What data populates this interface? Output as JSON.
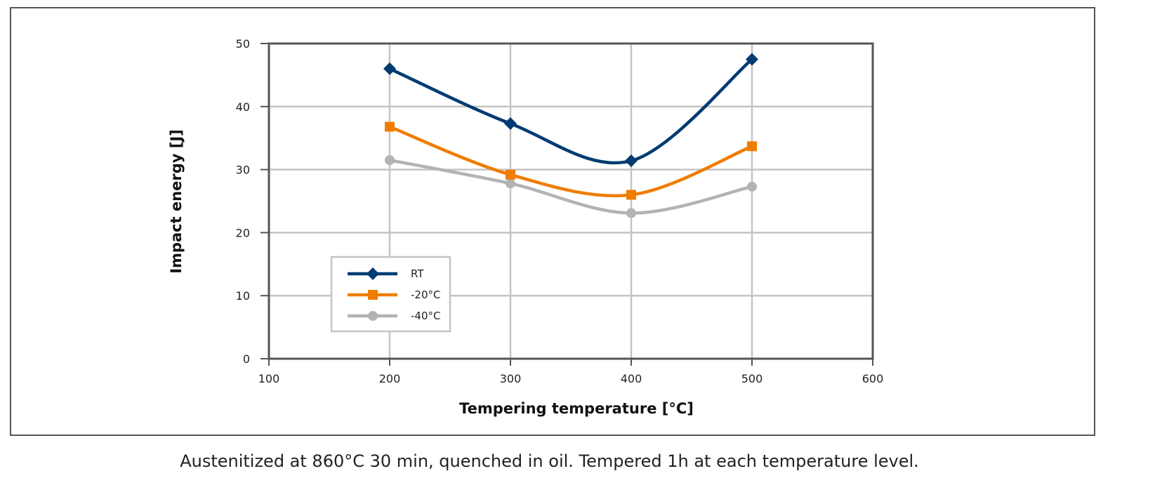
{
  "caption": "Austenitized at 860°C 30 min, quenched in oil. Tempered 1h at each temperature level.",
  "chart_data": {
    "type": "line",
    "title": "",
    "xlabel": "Tempering temperature [°C]",
    "ylabel": "Impact energy [J]",
    "xlim": [
      100,
      600
    ],
    "ylim": [
      0,
      50
    ],
    "x_ticks": [
      100,
      200,
      300,
      400,
      500,
      600
    ],
    "y_ticks": [
      0,
      10,
      20,
      30,
      40,
      50
    ],
    "grid": true,
    "smooth": true,
    "legend_position": "lower-left",
    "x": [
      200,
      300,
      400,
      500
    ],
    "series": [
      {
        "name": "RT",
        "values": [
          46.0,
          37.3,
          31.4,
          47.5
        ],
        "color": "#003b72",
        "marker": "diamond"
      },
      {
        "name": "-20°C",
        "values": [
          36.8,
          29.2,
          26.0,
          33.7
        ],
        "color": "#ef7d00",
        "marker": "square"
      },
      {
        "name": "-40°C",
        "values": [
          31.5,
          27.8,
          23.1,
          27.3
        ],
        "color": "#b3b3b3",
        "marker": "circle"
      }
    ]
  }
}
